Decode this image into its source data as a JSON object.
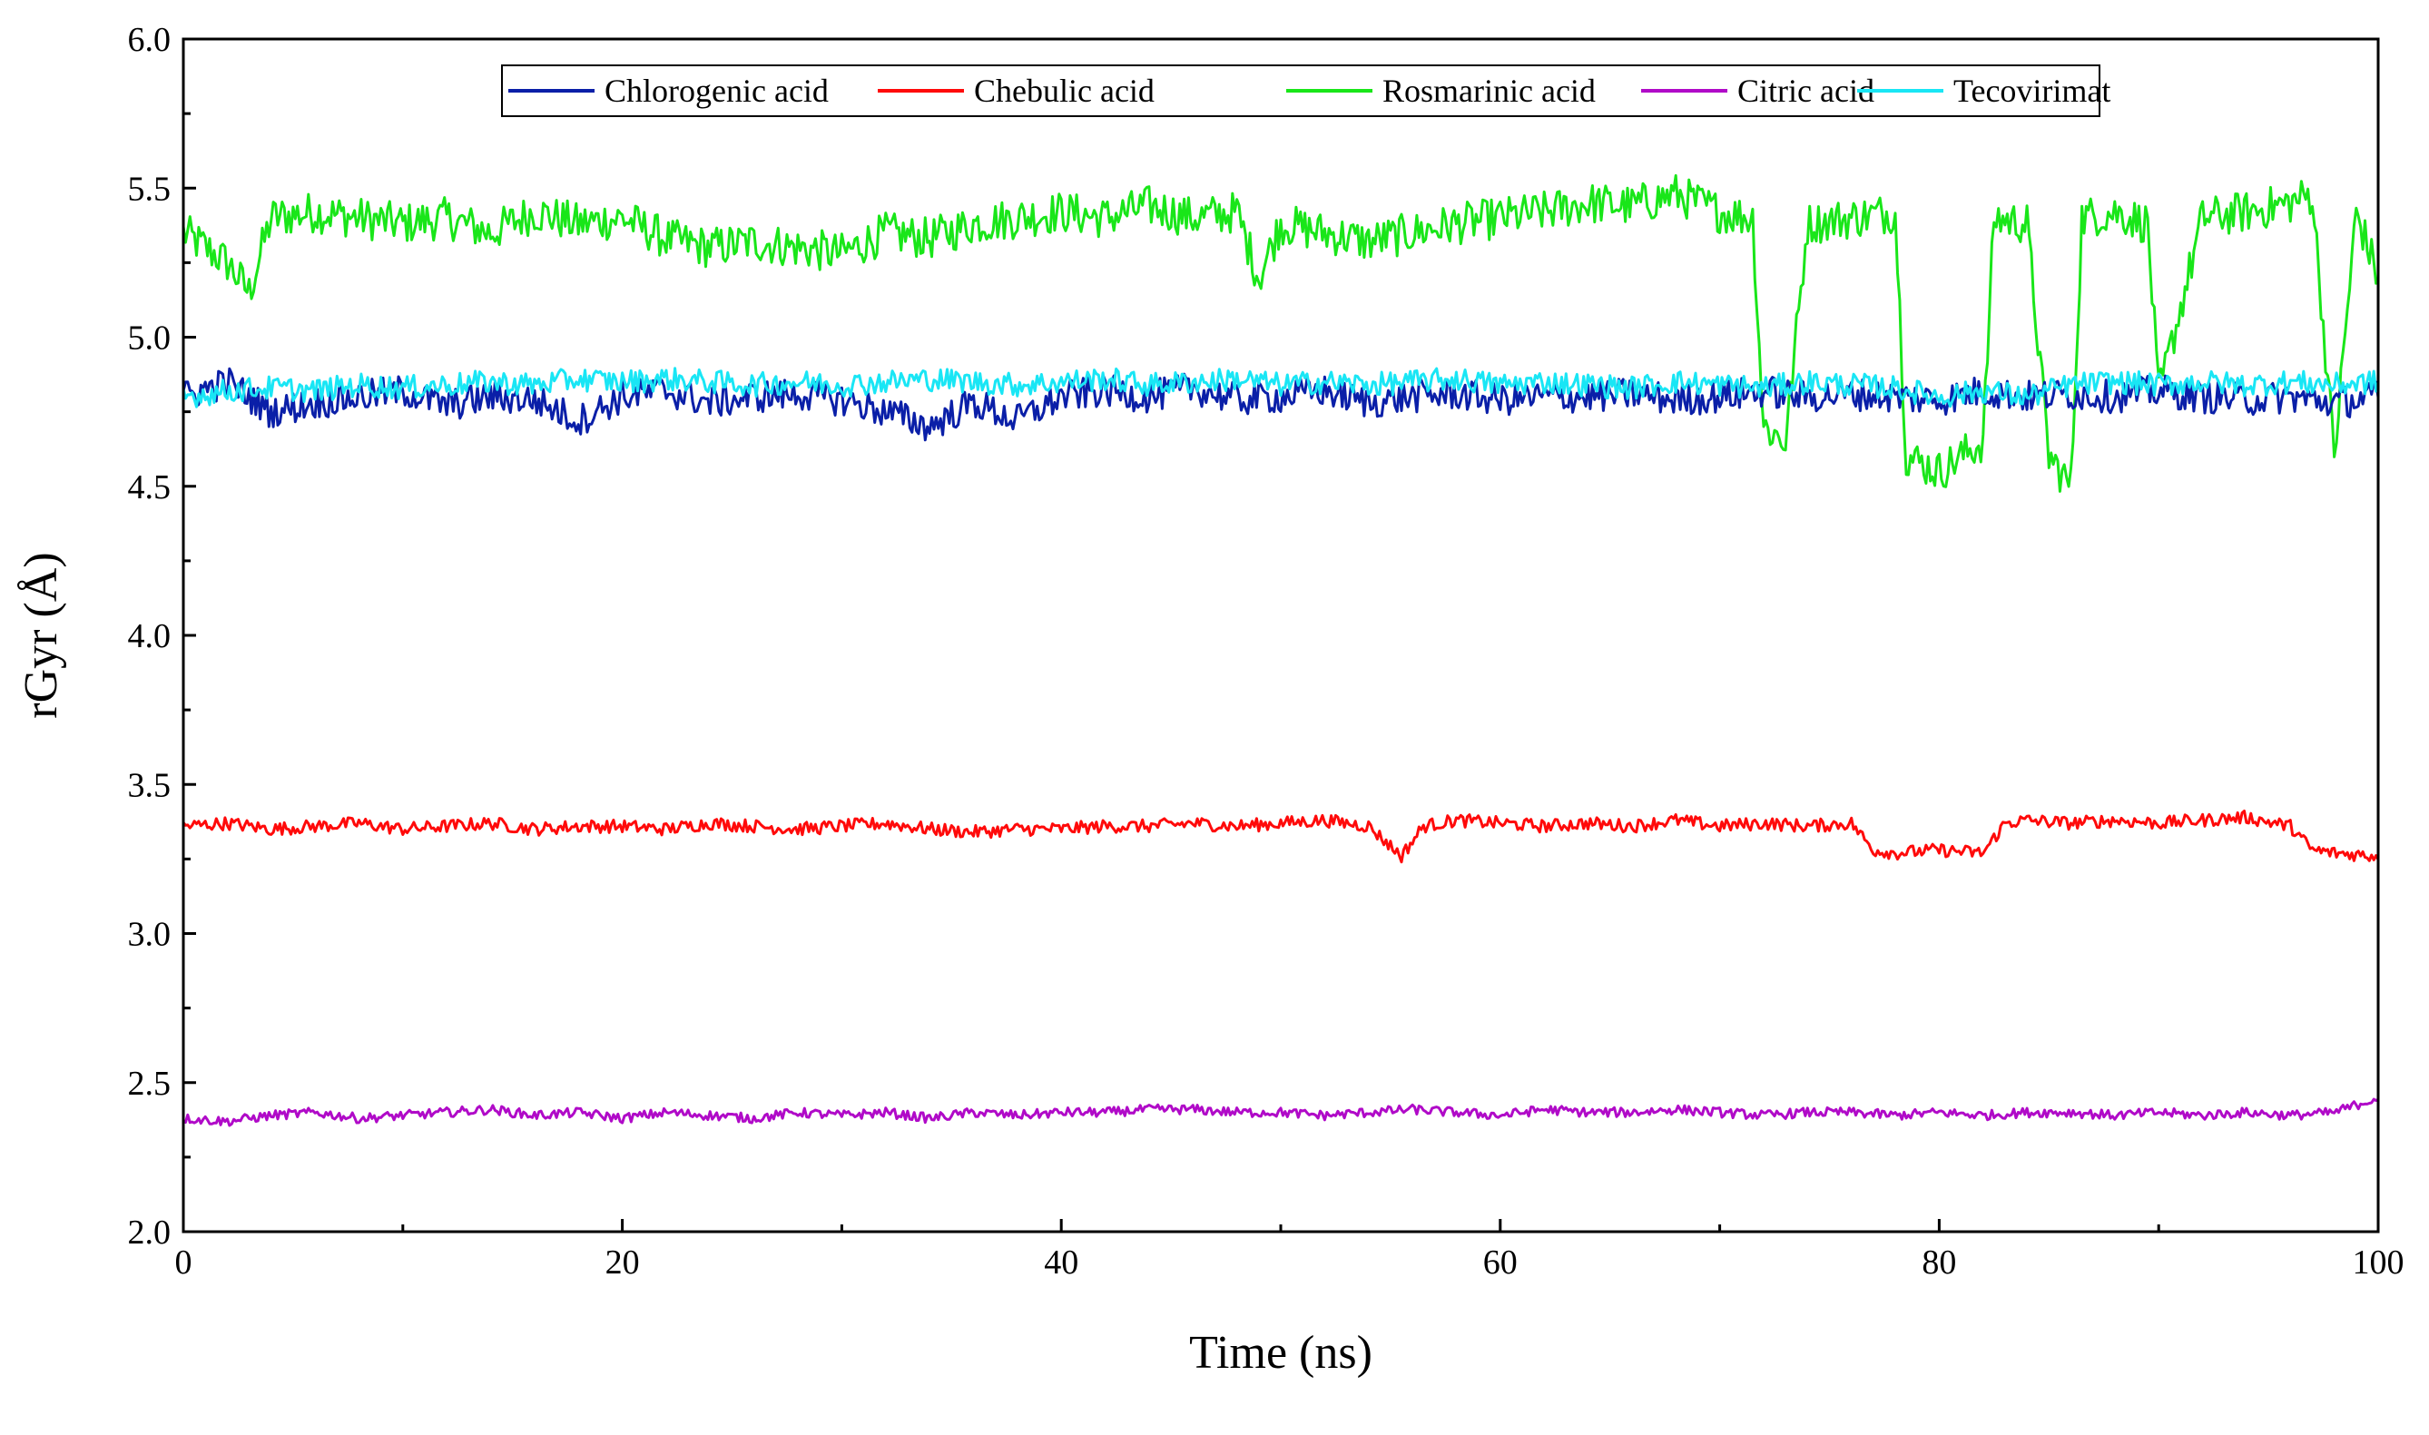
{
  "chart_data": {
    "type": "line",
    "title": "",
    "xlabel": "Time (ns)",
    "ylabel": "rGyr (Å)",
    "xlim": [
      0,
      100
    ],
    "ylim": [
      2.0,
      6.0
    ],
    "xticks": [
      0,
      20,
      40,
      60,
      80,
      100
    ],
    "yticks": [
      2.0,
      2.5,
      3.0,
      3.5,
      4.0,
      4.5,
      5.0,
      5.5,
      6.0
    ],
    "grid": false,
    "legend_position": "top-center",
    "series": [
      {
        "name": "Chlorogenic acid",
        "color": "#0a1fa8",
        "x": [
          0,
          2,
          4,
          6,
          8,
          10,
          12,
          14,
          16,
          18,
          20,
          22,
          24,
          26,
          28,
          30,
          32,
          34,
          36,
          38,
          40,
          42,
          44,
          46,
          48,
          50,
          52,
          54,
          56,
          58,
          60,
          62,
          64,
          66,
          68,
          70,
          72,
          74,
          76,
          78,
          80,
          82,
          84,
          86,
          88,
          90,
          92,
          94,
          96,
          98,
          100
        ],
        "y": [
          4.8,
          4.85,
          4.75,
          4.78,
          4.8,
          4.82,
          4.77,
          4.8,
          4.79,
          4.72,
          4.8,
          4.82,
          4.78,
          4.8,
          4.81,
          4.79,
          4.75,
          4.7,
          4.78,
          4.72,
          4.8,
          4.82,
          4.8,
          4.83,
          4.79,
          4.8,
          4.82,
          4.78,
          4.8,
          4.81,
          4.79,
          4.8,
          4.8,
          4.81,
          4.79,
          4.8,
          4.82,
          4.8,
          4.81,
          4.8,
          4.79,
          4.82,
          4.8,
          4.81,
          4.8,
          4.82,
          4.8,
          4.79,
          4.8,
          4.78,
          4.8
        ]
      },
      {
        "name": "Chebulic acid",
        "color": "#ff0a0a",
        "x": [
          0,
          2,
          4,
          6,
          8,
          10,
          12,
          14,
          16,
          18,
          20,
          22,
          24,
          26,
          28,
          30,
          32,
          34,
          36,
          38,
          40,
          42,
          44,
          46,
          48,
          50,
          52,
          54,
          55.5,
          56.5,
          58,
          60,
          62,
          64,
          66,
          68,
          70,
          72,
          74,
          76,
          77,
          78,
          80,
          82,
          83,
          84,
          86,
          88,
          90,
          92,
          94,
          96,
          97,
          98,
          100
        ],
        "y": [
          3.36,
          3.37,
          3.35,
          3.36,
          3.37,
          3.35,
          3.36,
          3.37,
          3.35,
          3.36,
          3.36,
          3.35,
          3.37,
          3.36,
          3.35,
          3.36,
          3.37,
          3.35,
          3.34,
          3.35,
          3.35,
          3.36,
          3.36,
          3.37,
          3.36,
          3.37,
          3.38,
          3.36,
          3.26,
          3.36,
          3.38,
          3.37,
          3.36,
          3.37,
          3.36,
          3.38,
          3.36,
          3.37,
          3.36,
          3.37,
          3.28,
          3.27,
          3.28,
          3.27,
          3.37,
          3.38,
          3.37,
          3.38,
          3.37,
          3.38,
          3.39,
          3.36,
          3.28,
          3.27,
          3.26
        ]
      },
      {
        "name": "Rosmarinic acid",
        "color": "#19e619",
        "x": [
          0,
          1,
          2,
          3,
          4,
          6,
          8,
          10,
          12,
          14,
          16,
          18,
          20,
          22,
          24,
          26,
          28,
          30,
          32,
          34,
          36,
          38,
          40,
          42,
          44,
          46,
          48,
          49,
          50,
          52,
          54,
          56,
          58,
          60,
          62,
          64,
          66,
          68,
          70,
          71.5,
          72,
          73,
          74,
          76,
          78,
          78.5,
          80,
          82,
          82.5,
          84,
          85,
          86,
          86.5,
          88,
          89.5,
          90,
          92,
          94,
          96,
          97,
          98,
          99,
          100
        ],
        "y": [
          5.35,
          5.3,
          5.25,
          5.15,
          5.4,
          5.42,
          5.4,
          5.38,
          5.4,
          5.35,
          5.42,
          5.38,
          5.4,
          5.33,
          5.3,
          5.32,
          5.3,
          5.28,
          5.35,
          5.33,
          5.38,
          5.4,
          5.42,
          5.4,
          5.44,
          5.4,
          5.42,
          5.2,
          5.38,
          5.35,
          5.32,
          5.35,
          5.38,
          5.4,
          5.42,
          5.45,
          5.44,
          5.48,
          5.42,
          5.4,
          4.7,
          4.65,
          5.38,
          5.4,
          5.42,
          4.6,
          4.55,
          4.65,
          5.4,
          5.38,
          4.6,
          4.5,
          5.4,
          5.42,
          5.38,
          4.8,
          5.4,
          5.42,
          5.45,
          5.48,
          4.6,
          5.42,
          5.2
        ]
      },
      {
        "name": "Citric acid",
        "color": "#b00ac8",
        "x": [
          0,
          2,
          4,
          6,
          8,
          10,
          12,
          14,
          16,
          18,
          20,
          22,
          24,
          26,
          28,
          30,
          32,
          34,
          36,
          38,
          40,
          42,
          44,
          46,
          48,
          50,
          52,
          54,
          56,
          58,
          60,
          62,
          64,
          66,
          68,
          70,
          72,
          74,
          76,
          78,
          80,
          82,
          84,
          86,
          88,
          90,
          92,
          94,
          96,
          98,
          100
        ],
        "y": [
          2.38,
          2.37,
          2.39,
          2.4,
          2.38,
          2.39,
          2.4,
          2.41,
          2.39,
          2.4,
          2.38,
          2.4,
          2.39,
          2.38,
          2.4,
          2.39,
          2.4,
          2.38,
          2.4,
          2.39,
          2.4,
          2.4,
          2.41,
          2.41,
          2.4,
          2.4,
          2.39,
          2.4,
          2.41,
          2.4,
          2.39,
          2.41,
          2.4,
          2.4,
          2.41,
          2.4,
          2.39,
          2.4,
          2.4,
          2.39,
          2.4,
          2.39,
          2.4,
          2.4,
          2.39,
          2.4,
          2.39,
          2.4,
          2.39,
          2.4,
          2.45
        ]
      },
      {
        "name": "Tecovirimat",
        "color": "#19e6f5",
        "x": [
          0,
          2,
          4,
          6,
          8,
          10,
          12,
          14,
          16,
          18,
          20,
          22,
          24,
          26,
          28,
          30,
          32,
          34,
          36,
          38,
          40,
          42,
          44,
          46,
          48,
          50,
          52,
          54,
          56,
          58,
          60,
          62,
          64,
          66,
          68,
          70,
          72,
          74,
          76,
          78,
          80,
          82,
          84,
          86,
          88,
          90,
          92,
          94,
          96,
          98,
          100
        ],
        "y": [
          4.8,
          4.82,
          4.83,
          4.82,
          4.84,
          4.83,
          4.84,
          4.85,
          4.84,
          4.86,
          4.85,
          4.86,
          4.85,
          4.84,
          4.85,
          4.84,
          4.85,
          4.86,
          4.85,
          4.84,
          4.85,
          4.86,
          4.84,
          4.85,
          4.86,
          4.84,
          4.85,
          4.84,
          4.85,
          4.86,
          4.84,
          4.85,
          4.84,
          4.83,
          4.85,
          4.84,
          4.83,
          4.85,
          4.84,
          4.83,
          4.8,
          4.82,
          4.8,
          4.84,
          4.85,
          4.84,
          4.85,
          4.84,
          4.85,
          4.84,
          4.85
        ]
      }
    ]
  }
}
